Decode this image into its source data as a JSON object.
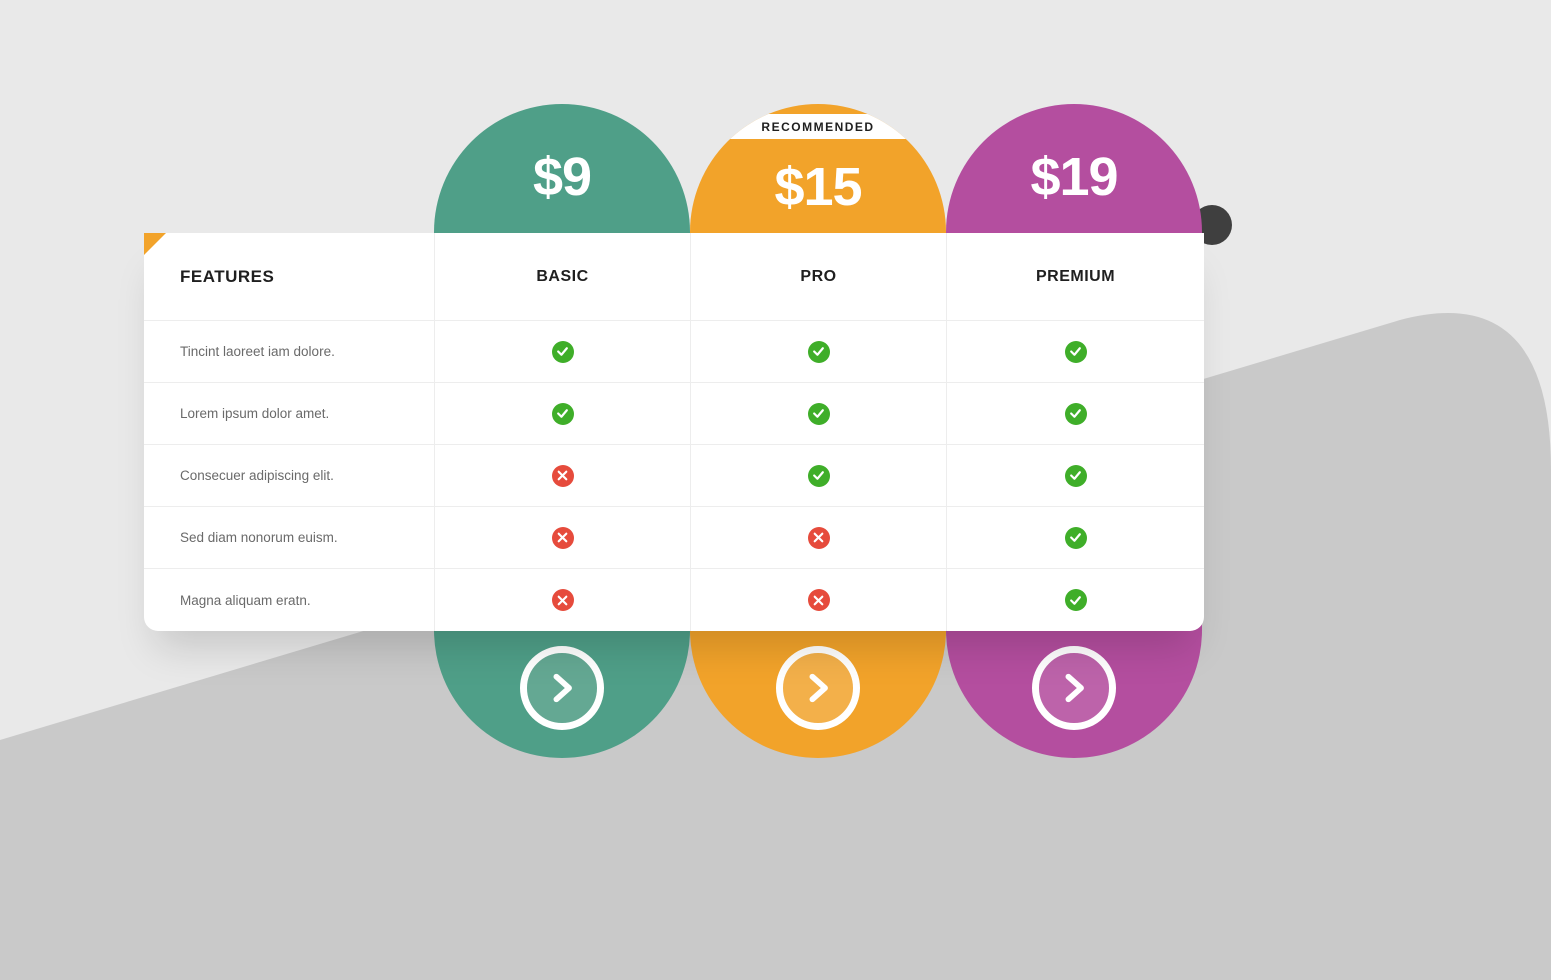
{
  "colors": {
    "bgGrayDark": "#c9c9c9",
    "check": "#3fae29",
    "cross": "#e64b3c",
    "cornerAccent": "#f2a32a"
  },
  "featuresHeader": "FEATURES",
  "plans": [
    {
      "key": "basic",
      "name": "BASIC",
      "price": "$9",
      "color": "#4f9f88",
      "ctaInner": "#64a893",
      "recommended": false
    },
    {
      "key": "pro",
      "name": "PRO",
      "price": "$15",
      "color": "#f2a32a",
      "ctaInner": "#f3b04a",
      "recommended": true,
      "recommendedLabel": "RECOMMENDED"
    },
    {
      "key": "premium",
      "name": "PREMIUM",
      "price": "$19",
      "color": "#b44e9f",
      "ctaInner": "#bd63aa",
      "recommended": false
    }
  ],
  "features": [
    {
      "label": "Tincint laoreet iam dolore.",
      "values": [
        true,
        true,
        true
      ]
    },
    {
      "label": "Lorem ipsum dolor amet.",
      "values": [
        true,
        true,
        true
      ]
    },
    {
      "label": "Consecuer adipiscing elit.",
      "values": [
        false,
        true,
        true
      ]
    },
    {
      "label": "Sed diam nonorum euism.",
      "values": [
        false,
        false,
        true
      ]
    },
    {
      "label": "Magna aliquam eratn.",
      "values": [
        false,
        false,
        true
      ]
    }
  ]
}
